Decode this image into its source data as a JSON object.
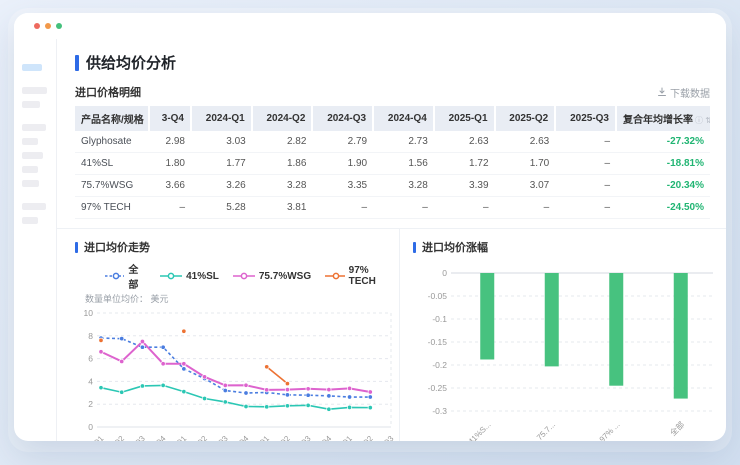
{
  "window": {
    "traffic_lights": {
      "close": "#ee6a5f",
      "minimize": "#f2994a",
      "maximize": "#44c07c"
    }
  },
  "page": {
    "title": "供给均价分析",
    "accent_color": "#2e6be6"
  },
  "table_section": {
    "title": "进口价格明细",
    "download_label": "下载数据",
    "columns": [
      "产品名称/规格",
      "3-Q4",
      "2024-Q1",
      "2024-Q2",
      "2024-Q3",
      "2024-Q4",
      "2025-Q1",
      "2025-Q2",
      "2025-Q3",
      "复合年均增长率"
    ],
    "rows": [
      {
        "name": "Glyphosate",
        "values": [
          "2.98",
          "3.03",
          "2.82",
          "2.79",
          "2.73",
          "2.63",
          "2.63",
          "–"
        ],
        "cagr": "-27.32%"
      },
      {
        "name": "41%SL",
        "values": [
          "1.80",
          "1.77",
          "1.86",
          "1.90",
          "1.56",
          "1.72",
          "1.70",
          "–"
        ],
        "cagr": "-18.81%"
      },
      {
        "name": "75.7%WSG",
        "values": [
          "3.66",
          "3.26",
          "3.28",
          "3.35",
          "3.28",
          "3.39",
          "3.07",
          "–"
        ],
        "cagr": "-20.34%"
      },
      {
        "name": "97% TECH",
        "values": [
          "–",
          "5.28",
          "3.81",
          "–",
          "–",
          "–",
          "–",
          "–"
        ],
        "cagr": "-24.50%"
      }
    ],
    "cagr_color": "#21b573"
  },
  "chart_data": [
    {
      "type": "line",
      "title": "进口均价走势",
      "unit_label": "数量单位均价： 美元",
      "categories": [
        "2022-Q1",
        "2022-Q2",
        "2022-Q3",
        "2022-Q4",
        "2023-Q1",
        "2023-Q2",
        "2023-Q3",
        "2023-Q4",
        "2024-Q1",
        "2024-Q2",
        "2024-Q3",
        "2024-Q4",
        "2025-Q1",
        "2025-Q2",
        "2025-Q3"
      ],
      "ylim": [
        0,
        10
      ],
      "yticks": [
        "0",
        "2",
        "4",
        "6",
        "8",
        "10"
      ],
      "legend_position": "top",
      "series": [
        {
          "name": "全部",
          "color": "#4a7de0",
          "dashed": true,
          "values": [
            7.8,
            7.75,
            7.0,
            7.0,
            5.1,
            4.25,
            3.2,
            2.98,
            3.03,
            2.82,
            2.79,
            2.73,
            2.63,
            2.63,
            null
          ]
        },
        {
          "name": "41%SL",
          "color": "#2bc7b4",
          "dashed": false,
          "values": [
            3.45,
            3.05,
            3.6,
            3.65,
            3.1,
            2.5,
            2.2,
            1.8,
            1.77,
            1.86,
            1.9,
            1.56,
            1.72,
            1.7,
            null
          ]
        },
        {
          "name": "75.7%WSG",
          "color": "#dd63ce",
          "dashed": false,
          "values": [
            6.6,
            5.75,
            7.5,
            5.55,
            5.55,
            4.4,
            3.65,
            3.66,
            3.26,
            3.28,
            3.35,
            3.28,
            3.39,
            3.07,
            null
          ]
        },
        {
          "name": "97% TECH",
          "color": "#ed7233",
          "dashed": false,
          "values": [
            7.6,
            null,
            null,
            null,
            8.4,
            null,
            null,
            null,
            5.28,
            3.81,
            null,
            null,
            null,
            null,
            null
          ]
        }
      ]
    },
    {
      "type": "bar",
      "title": "进口均价涨幅",
      "categories": [
        "41%S...",
        "75.7...",
        "97% ...",
        "全部"
      ],
      "values": [
        -0.188,
        -0.203,
        -0.245,
        -0.273
      ],
      "bar_color": "#47c27f",
      "ylim": [
        -0.3,
        0
      ],
      "yticks": [
        "0",
        "-0.05",
        "-0.1",
        "-0.15",
        "-0.2",
        "-0.25",
        "-0.3"
      ]
    }
  ]
}
